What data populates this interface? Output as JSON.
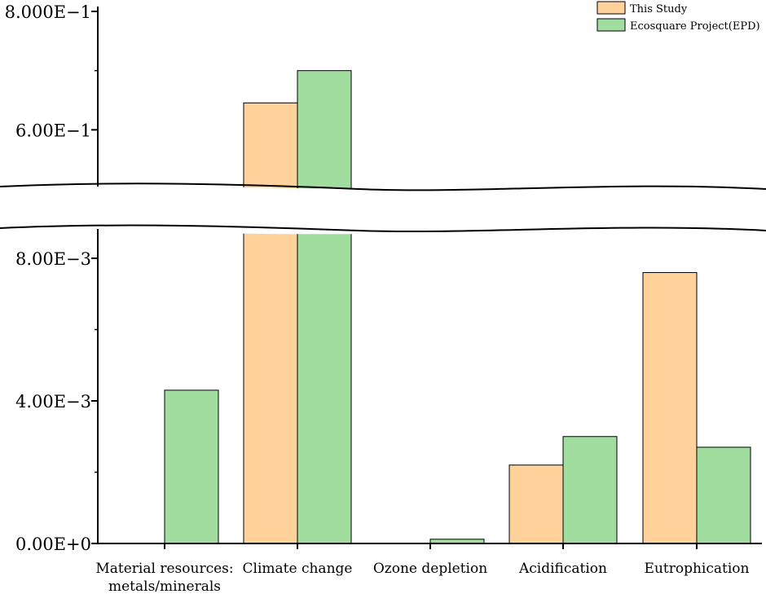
{
  "chart_data": {
    "type": "bar",
    "categories": [
      [
        "Material resources:",
        "metals/minerals"
      ],
      [
        "Climate change"
      ],
      [
        "Ozone depletion"
      ],
      [
        "Acidification"
      ],
      [
        "Eutrophication"
      ]
    ],
    "series": [
      {
        "name": "This Study",
        "color": "#ffd29b",
        "values": [
          0,
          0.6455,
          0,
          0.0022,
          0.0076
        ]
      },
      {
        "name": "Ecosquare Project(EPD)",
        "color": "#a1dd9f",
        "values": [
          0.0043,
          0.7,
          0.00012,
          0.003,
          0.0027
        ]
      }
    ],
    "y_axis": {
      "broken": true,
      "lower_segment": {
        "range": [
          0,
          0.0088
        ]
      },
      "upper_segment": {
        "range": [
          0.5,
          0.8
        ]
      },
      "tick_labels": [
        {
          "value": 0,
          "label": "0.00E+0",
          "segment": "lower"
        },
        {
          "value": 0.004,
          "label": "4.00E−3",
          "segment": "lower"
        },
        {
          "value": 0.008,
          "label": "8.00E−3",
          "segment": "lower"
        },
        {
          "value": 0.6,
          "label": "6.00E−1",
          "segment": "upper"
        },
        {
          "value": 0.8,
          "label": "8.000E−1",
          "segment": "upper"
        }
      ]
    },
    "legend": {
      "position": "top-right"
    },
    "grid": false,
    "title": "",
    "xlabel": "",
    "ylabel": ""
  }
}
